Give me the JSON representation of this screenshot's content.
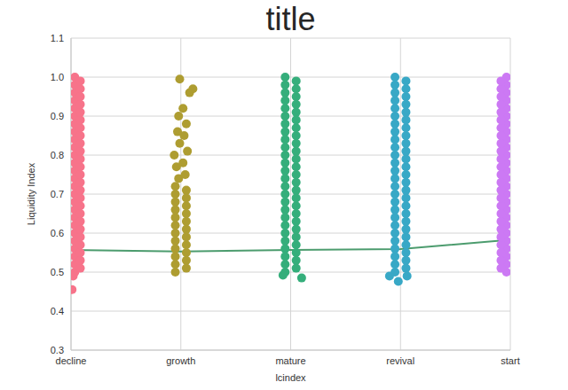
{
  "chart_data": {
    "type": "scatter",
    "title": "title",
    "x_label": "lcindex",
    "y_label": "Liquidity Index",
    "xlim": [
      0,
      4
    ],
    "ylim": [
      0.3,
      1.1
    ],
    "xticks": [
      {
        "value": 0,
        "label": "decline"
      },
      {
        "value": 1,
        "label": "growth"
      },
      {
        "value": 2,
        "label": "mature"
      },
      {
        "value": 3,
        "label": "revival"
      },
      {
        "value": 4,
        "label": "start"
      }
    ],
    "yticks": [
      0.3,
      0.4,
      0.5,
      0.6,
      0.7,
      0.8,
      0.9,
      {
        "value": 1,
        "label": "1.0"
      },
      1.1
    ],
    "grid": true,
    "series": [
      {
        "type": "line",
        "marker": "none",
        "color": "#4c9c6e",
        "x": [
          0,
          1,
          2,
          3,
          4
        ],
        "values": [
          0.557,
          0.553,
          0.557,
          0.559,
          0.583
        ]
      },
      {
        "name": "decline",
        "color": "#f7738a",
        "x": [
          0.035,
          0.035,
          0.035,
          0.035,
          0.035,
          0.035,
          0.035,
          0.035,
          0.035,
          0.035,
          0.035,
          0.035,
          0.035,
          0.035,
          0.035,
          0.035,
          0.035,
          0.035,
          0.035,
          0.035,
          0.035,
          0.035,
          0.035,
          0.035,
          0.035,
          0.035,
          0.085,
          0.085,
          0.085,
          0.085,
          0.085,
          0.085,
          0.085,
          0.085,
          0.085,
          0.085,
          0.085,
          0.085,
          0.085,
          0.085,
          0.085,
          0.085,
          0.085,
          0.085,
          0.085,
          0.085,
          0.085,
          0.085,
          0.085,
          0.085,
          0.085,
          0.01,
          0.02
        ],
        "values": [
          0.5,
          0.52,
          0.54,
          0.56,
          0.58,
          0.6,
          0.62,
          0.64,
          0.66,
          0.68,
          0.7,
          0.72,
          0.74,
          0.76,
          0.78,
          0.8,
          0.82,
          0.84,
          0.86,
          0.88,
          0.9,
          0.92,
          0.94,
          0.96,
          0.98,
          1.0,
          0.51,
          0.53,
          0.55,
          0.57,
          0.59,
          0.61,
          0.63,
          0.65,
          0.67,
          0.69,
          0.71,
          0.73,
          0.75,
          0.77,
          0.79,
          0.81,
          0.83,
          0.85,
          0.87,
          0.89,
          0.91,
          0.93,
          0.95,
          0.97,
          0.99,
          0.455,
          0.49
        ]
      },
      {
        "name": "growth",
        "color": "#ae9d31",
        "x": [
          0.95,
          0.95,
          0.95,
          0.95,
          0.95,
          0.95,
          0.95,
          0.95,
          0.95,
          0.95,
          0.95,
          0.95,
          1.05,
          1.05,
          1.05,
          1.05,
          1.05,
          1.05,
          1.05,
          1.05,
          1.05,
          1.05,
          1.05,
          0.98,
          1.04,
          0.96,
          1.02,
          0.94,
          1.06,
          0.99,
          1.03,
          0.97,
          1.05,
          0.98,
          1.02,
          1.08,
          1.11,
          0.99
        ],
        "values": [
          0.5,
          0.52,
          0.54,
          0.56,
          0.58,
          0.6,
          0.62,
          0.64,
          0.66,
          0.68,
          0.7,
          0.72,
          0.51,
          0.53,
          0.55,
          0.57,
          0.59,
          0.61,
          0.63,
          0.65,
          0.67,
          0.69,
          0.71,
          0.74,
          0.75,
          0.77,
          0.78,
          0.8,
          0.81,
          0.83,
          0.85,
          0.86,
          0.88,
          0.9,
          0.92,
          0.96,
          0.97,
          0.995
        ]
      },
      {
        "name": "mature",
        "color": "#35ae7b",
        "x": [
          1.95,
          1.95,
          1.95,
          1.95,
          1.95,
          1.95,
          1.95,
          1.95,
          1.95,
          1.95,
          1.95,
          1.95,
          1.95,
          1.95,
          1.95,
          1.95,
          1.95,
          1.95,
          1.95,
          1.95,
          1.95,
          1.95,
          1.95,
          1.95,
          1.95,
          1.95,
          2.05,
          2.05,
          2.05,
          2.05,
          2.05,
          2.05,
          2.05,
          2.05,
          2.05,
          2.05,
          2.05,
          2.05,
          2.05,
          2.05,
          2.05,
          2.05,
          2.05,
          2.05,
          2.05,
          2.05,
          2.05,
          2.05,
          2.05,
          2.05,
          2.05,
          2.1,
          1.93
        ],
        "values": [
          0.5,
          0.52,
          0.54,
          0.56,
          0.58,
          0.6,
          0.62,
          0.64,
          0.66,
          0.68,
          0.7,
          0.72,
          0.74,
          0.76,
          0.78,
          0.8,
          0.82,
          0.84,
          0.86,
          0.88,
          0.9,
          0.92,
          0.94,
          0.96,
          0.98,
          1.0,
          0.51,
          0.53,
          0.55,
          0.57,
          0.59,
          0.61,
          0.63,
          0.65,
          0.67,
          0.69,
          0.71,
          0.73,
          0.75,
          0.77,
          0.79,
          0.81,
          0.83,
          0.85,
          0.87,
          0.89,
          0.91,
          0.93,
          0.95,
          0.97,
          0.99,
          0.485,
          0.492
        ]
      },
      {
        "name": "revival",
        "color": "#38a8c6",
        "x": [
          2.95,
          2.95,
          2.95,
          2.95,
          2.95,
          2.95,
          2.95,
          2.95,
          2.95,
          2.95,
          2.95,
          2.95,
          2.95,
          2.95,
          2.95,
          2.95,
          2.95,
          2.95,
          2.95,
          2.95,
          2.95,
          2.95,
          2.95,
          2.95,
          2.95,
          2.95,
          3.05,
          3.05,
          3.05,
          3.05,
          3.05,
          3.05,
          3.05,
          3.05,
          3.05,
          3.05,
          3.05,
          3.05,
          3.05,
          3.05,
          3.05,
          3.05,
          3.05,
          3.05,
          3.05,
          3.05,
          3.05,
          3.05,
          3.05,
          3.05,
          3.05,
          2.9,
          2.98,
          3.06
        ],
        "values": [
          0.5,
          0.52,
          0.54,
          0.56,
          0.58,
          0.6,
          0.62,
          0.64,
          0.66,
          0.68,
          0.7,
          0.72,
          0.74,
          0.76,
          0.78,
          0.8,
          0.82,
          0.84,
          0.86,
          0.88,
          0.9,
          0.92,
          0.94,
          0.96,
          0.98,
          1.0,
          0.51,
          0.53,
          0.55,
          0.57,
          0.59,
          0.61,
          0.63,
          0.65,
          0.67,
          0.69,
          0.71,
          0.73,
          0.75,
          0.77,
          0.79,
          0.81,
          0.83,
          0.85,
          0.87,
          0.89,
          0.91,
          0.93,
          0.95,
          0.97,
          0.99,
          0.49,
          0.476,
          0.49
        ]
      },
      {
        "name": "start",
        "color": "#cc79f4",
        "x": [
          3.965,
          3.965,
          3.965,
          3.965,
          3.965,
          3.965,
          3.965,
          3.965,
          3.965,
          3.965,
          3.965,
          3.965,
          3.965,
          3.965,
          3.965,
          3.965,
          3.965,
          3.965,
          3.965,
          3.965,
          3.965,
          3.965,
          3.965,
          3.965,
          3.965,
          3.965,
          3.915,
          3.915,
          3.915,
          3.915,
          3.915,
          3.915,
          3.915,
          3.915,
          3.915,
          3.915,
          3.915,
          3.915,
          3.915,
          3.915,
          3.915,
          3.915,
          3.915,
          3.915,
          3.915,
          3.915,
          3.915,
          3.915,
          3.915,
          3.915,
          3.915
        ],
        "values": [
          0.5,
          0.52,
          0.54,
          0.56,
          0.58,
          0.6,
          0.62,
          0.64,
          0.66,
          0.68,
          0.7,
          0.72,
          0.74,
          0.76,
          0.78,
          0.8,
          0.82,
          0.84,
          0.86,
          0.88,
          0.9,
          0.92,
          0.94,
          0.96,
          0.98,
          1.0,
          0.51,
          0.53,
          0.55,
          0.57,
          0.59,
          0.61,
          0.63,
          0.65,
          0.67,
          0.69,
          0.71,
          0.73,
          0.75,
          0.77,
          0.79,
          0.81,
          0.83,
          0.85,
          0.87,
          0.89,
          0.91,
          0.93,
          0.95,
          0.97,
          0.99
        ]
      }
    ]
  }
}
